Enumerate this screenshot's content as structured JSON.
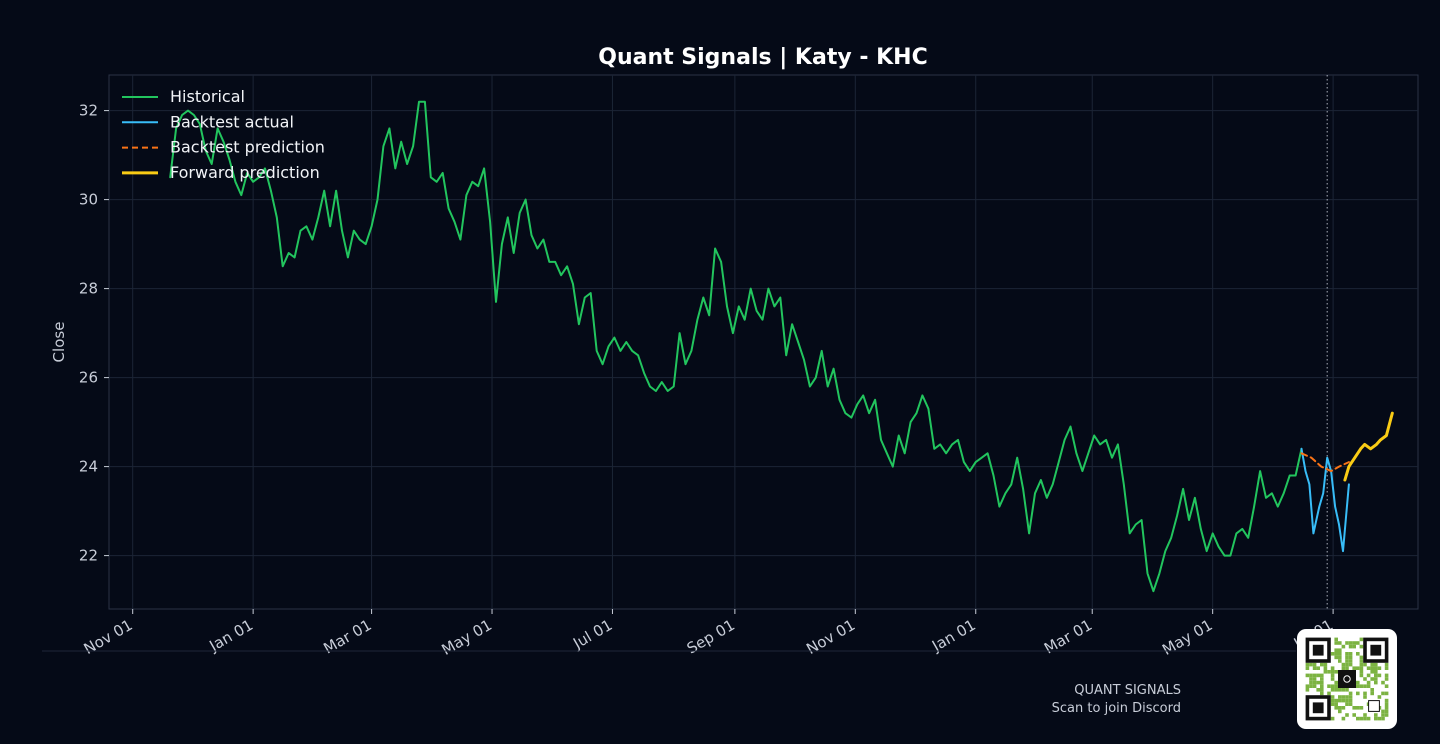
{
  "colors": {
    "background": "#050a17",
    "grid": "#1c2536",
    "spine": "#2a3346",
    "historical": "#22c55e",
    "backtest_actual": "#38bdf8",
    "backtest_prediction": "#f97316",
    "forward_prediction": "#facc15"
  },
  "footer": {
    "brand": "QUANT SIGNALS",
    "cta": "Scan to join Discord",
    "qr_icon": "qr-code-icon"
  },
  "chart_data": {
    "type": "line",
    "title": "Quant Signals | Katy - KHC",
    "xlabel": "",
    "ylabel": "Close",
    "x_axis": "date",
    "xlim": [
      "2023-10-20",
      "2025-08-13"
    ],
    "ylim": [
      20.8,
      32.8
    ],
    "yticks": [
      22,
      24,
      26,
      28,
      30,
      32
    ],
    "xticks": [
      "2023-11-01",
      "2024-01-01",
      "2024-03-01",
      "2024-05-01",
      "2024-07-01",
      "2024-09-01",
      "2024-11-01",
      "2025-01-01",
      "2025-03-01",
      "2025-05-01",
      "2025-07-01"
    ],
    "xtick_labels": [
      "Nov 01",
      "Jan 01",
      "Mar 01",
      "May 01",
      "Jul 01",
      "Sep 01",
      "Nov 01",
      "Jan 01",
      "Mar 01",
      "May 01",
      "Jul 01"
    ],
    "grid": true,
    "legend_position": "top-left",
    "forecast_start_marker": "2025-06-28",
    "series": [
      {
        "name": "Historical",
        "style": "solid",
        "points": [
          [
            "2023-11-20",
            30.5
          ],
          [
            "2023-11-23",
            31.6
          ],
          [
            "2023-11-26",
            31.9
          ],
          [
            "2023-11-29",
            32.0
          ],
          [
            "2023-12-02",
            31.9
          ],
          [
            "2023-12-05",
            31.7
          ],
          [
            "2023-12-08",
            31.1
          ],
          [
            "2023-12-11",
            30.8
          ],
          [
            "2023-12-14",
            31.6
          ],
          [
            "2023-12-17",
            31.3
          ],
          [
            "2023-12-20",
            30.9
          ],
          [
            "2023-12-23",
            30.4
          ],
          [
            "2023-12-26",
            30.1
          ],
          [
            "2023-12-29",
            30.6
          ],
          [
            "2024-01-01",
            30.4
          ],
          [
            "2024-01-04",
            30.5
          ],
          [
            "2024-01-07",
            30.7
          ],
          [
            "2024-01-10",
            30.2
          ],
          [
            "2024-01-13",
            29.6
          ],
          [
            "2024-01-16",
            28.5
          ],
          [
            "2024-01-19",
            28.8
          ],
          [
            "2024-01-22",
            28.7
          ],
          [
            "2024-01-25",
            29.3
          ],
          [
            "2024-01-28",
            29.4
          ],
          [
            "2024-01-31",
            29.1
          ],
          [
            "2024-02-03",
            29.6
          ],
          [
            "2024-02-06",
            30.2
          ],
          [
            "2024-02-09",
            29.4
          ],
          [
            "2024-02-12",
            30.2
          ],
          [
            "2024-02-15",
            29.3
          ],
          [
            "2024-02-18",
            28.7
          ],
          [
            "2024-02-21",
            29.3
          ],
          [
            "2024-02-24",
            29.1
          ],
          [
            "2024-02-27",
            29.0
          ],
          [
            "2024-03-01",
            29.4
          ],
          [
            "2024-03-04",
            30.0
          ],
          [
            "2024-03-07",
            31.2
          ],
          [
            "2024-03-10",
            31.6
          ],
          [
            "2024-03-13",
            30.7
          ],
          [
            "2024-03-16",
            31.3
          ],
          [
            "2024-03-19",
            30.8
          ],
          [
            "2024-03-22",
            31.2
          ],
          [
            "2024-03-25",
            32.2
          ],
          [
            "2024-03-28",
            32.2
          ],
          [
            "2024-03-31",
            30.5
          ],
          [
            "2024-04-03",
            30.4
          ],
          [
            "2024-04-06",
            30.6
          ],
          [
            "2024-04-09",
            29.8
          ],
          [
            "2024-04-12",
            29.5
          ],
          [
            "2024-04-15",
            29.1
          ],
          [
            "2024-04-18",
            30.1
          ],
          [
            "2024-04-21",
            30.4
          ],
          [
            "2024-04-24",
            30.3
          ],
          [
            "2024-04-27",
            30.7
          ],
          [
            "2024-04-30",
            29.5
          ],
          [
            "2024-05-03",
            27.7
          ],
          [
            "2024-05-06",
            29.0
          ],
          [
            "2024-05-09",
            29.6
          ],
          [
            "2024-05-12",
            28.8
          ],
          [
            "2024-05-15",
            29.7
          ],
          [
            "2024-05-18",
            30.0
          ],
          [
            "2024-05-21",
            29.2
          ],
          [
            "2024-05-24",
            28.9
          ],
          [
            "2024-05-27",
            29.1
          ],
          [
            "2024-05-30",
            28.6
          ],
          [
            "2024-06-02",
            28.6
          ],
          [
            "2024-06-05",
            28.3
          ],
          [
            "2024-06-08",
            28.5
          ],
          [
            "2024-06-11",
            28.1
          ],
          [
            "2024-06-14",
            27.2
          ],
          [
            "2024-06-17",
            27.8
          ],
          [
            "2024-06-20",
            27.9
          ],
          [
            "2024-06-23",
            26.6
          ],
          [
            "2024-06-26",
            26.3
          ],
          [
            "2024-06-29",
            26.7
          ],
          [
            "2024-07-02",
            26.9
          ],
          [
            "2024-07-05",
            26.6
          ],
          [
            "2024-07-08",
            26.8
          ],
          [
            "2024-07-11",
            26.6
          ],
          [
            "2024-07-14",
            26.5
          ],
          [
            "2024-07-17",
            26.1
          ],
          [
            "2024-07-20",
            25.8
          ],
          [
            "2024-07-23",
            25.7
          ],
          [
            "2024-07-26",
            25.9
          ],
          [
            "2024-07-29",
            25.7
          ],
          [
            "2024-08-01",
            25.8
          ],
          [
            "2024-08-04",
            27.0
          ],
          [
            "2024-08-07",
            26.3
          ],
          [
            "2024-08-10",
            26.6
          ],
          [
            "2024-08-13",
            27.3
          ],
          [
            "2024-08-16",
            27.8
          ],
          [
            "2024-08-19",
            27.4
          ],
          [
            "2024-08-22",
            28.9
          ],
          [
            "2024-08-25",
            28.6
          ],
          [
            "2024-08-28",
            27.6
          ],
          [
            "2024-08-31",
            27.0
          ],
          [
            "2024-09-03",
            27.6
          ],
          [
            "2024-09-06",
            27.3
          ],
          [
            "2024-09-09",
            28.0
          ],
          [
            "2024-09-12",
            27.5
          ],
          [
            "2024-09-15",
            27.3
          ],
          [
            "2024-09-18",
            28.0
          ],
          [
            "2024-09-21",
            27.6
          ],
          [
            "2024-09-24",
            27.8
          ],
          [
            "2024-09-27",
            26.5
          ],
          [
            "2024-09-30",
            27.2
          ],
          [
            "2024-10-03",
            26.8
          ],
          [
            "2024-10-06",
            26.4
          ],
          [
            "2024-10-09",
            25.8
          ],
          [
            "2024-10-12",
            26.0
          ],
          [
            "2024-10-15",
            26.6
          ],
          [
            "2024-10-18",
            25.8
          ],
          [
            "2024-10-21",
            26.2
          ],
          [
            "2024-10-24",
            25.5
          ],
          [
            "2024-10-27",
            25.2
          ],
          [
            "2024-10-30",
            25.1
          ],
          [
            "2024-11-02",
            25.4
          ],
          [
            "2024-11-05",
            25.6
          ],
          [
            "2024-11-08",
            25.2
          ],
          [
            "2024-11-11",
            25.5
          ],
          [
            "2024-11-14",
            24.6
          ],
          [
            "2024-11-17",
            24.3
          ],
          [
            "2024-11-20",
            24.0
          ],
          [
            "2024-11-23",
            24.7
          ],
          [
            "2024-11-26",
            24.3
          ],
          [
            "2024-11-29",
            25.0
          ],
          [
            "2024-12-02",
            25.2
          ],
          [
            "2024-12-05",
            25.6
          ],
          [
            "2024-12-08",
            25.3
          ],
          [
            "2024-12-11",
            24.4
          ],
          [
            "2024-12-14",
            24.5
          ],
          [
            "2024-12-17",
            24.3
          ],
          [
            "2024-12-20",
            24.5
          ],
          [
            "2024-12-23",
            24.6
          ],
          [
            "2024-12-26",
            24.1
          ],
          [
            "2024-12-29",
            23.9
          ],
          [
            "2025-01-01",
            24.1
          ],
          [
            "2025-01-04",
            24.2
          ],
          [
            "2025-01-07",
            24.3
          ],
          [
            "2025-01-10",
            23.8
          ],
          [
            "2025-01-13",
            23.1
          ],
          [
            "2025-01-16",
            23.4
          ],
          [
            "2025-01-19",
            23.6
          ],
          [
            "2025-01-22",
            24.2
          ],
          [
            "2025-01-25",
            23.5
          ],
          [
            "2025-01-28",
            22.5
          ],
          [
            "2025-01-31",
            23.4
          ],
          [
            "2025-02-03",
            23.7
          ],
          [
            "2025-02-06",
            23.3
          ],
          [
            "2025-02-09",
            23.6
          ],
          [
            "2025-02-12",
            24.1
          ],
          [
            "2025-02-15",
            24.6
          ],
          [
            "2025-02-18",
            24.9
          ],
          [
            "2025-02-21",
            24.3
          ],
          [
            "2025-02-24",
            23.9
          ],
          [
            "2025-02-27",
            24.3
          ],
          [
            "2025-03-02",
            24.7
          ],
          [
            "2025-03-05",
            24.5
          ],
          [
            "2025-03-08",
            24.6
          ],
          [
            "2025-03-11",
            24.2
          ],
          [
            "2025-03-14",
            24.5
          ],
          [
            "2025-03-17",
            23.6
          ],
          [
            "2025-03-20",
            22.5
          ],
          [
            "2025-03-23",
            22.7
          ],
          [
            "2025-03-26",
            22.8
          ],
          [
            "2025-03-29",
            21.6
          ],
          [
            "2025-04-01",
            21.2
          ],
          [
            "2025-04-04",
            21.6
          ],
          [
            "2025-04-07",
            22.1
          ],
          [
            "2025-04-10",
            22.4
          ],
          [
            "2025-04-13",
            22.9
          ],
          [
            "2025-04-16",
            23.5
          ],
          [
            "2025-04-19",
            22.8
          ],
          [
            "2025-04-22",
            23.3
          ],
          [
            "2025-04-25",
            22.6
          ],
          [
            "2025-04-28",
            22.1
          ],
          [
            "2025-05-01",
            22.5
          ],
          [
            "2025-05-04",
            22.2
          ],
          [
            "2025-05-07",
            22.0
          ],
          [
            "2025-05-10",
            22.0
          ],
          [
            "2025-05-13",
            22.5
          ],
          [
            "2025-05-16",
            22.6
          ],
          [
            "2025-05-19",
            22.4
          ],
          [
            "2025-05-22",
            23.1
          ],
          [
            "2025-05-25",
            23.9
          ],
          [
            "2025-05-28",
            23.3
          ],
          [
            "2025-05-31",
            23.4
          ],
          [
            "2025-06-03",
            23.1
          ],
          [
            "2025-06-06",
            23.4
          ],
          [
            "2025-06-09",
            23.8
          ],
          [
            "2025-06-12",
            23.8
          ],
          [
            "2025-06-15",
            24.4
          ]
        ]
      },
      {
        "name": "Backtest actual",
        "style": "solid",
        "points": [
          [
            "2025-06-15",
            24.4
          ],
          [
            "2025-06-17",
            23.9
          ],
          [
            "2025-06-19",
            23.6
          ],
          [
            "2025-06-21",
            22.5
          ],
          [
            "2025-06-24",
            23.1
          ],
          [
            "2025-06-26",
            23.4
          ],
          [
            "2025-06-28",
            24.2
          ],
          [
            "2025-06-30",
            23.9
          ],
          [
            "2025-07-02",
            23.1
          ],
          [
            "2025-07-04",
            22.7
          ],
          [
            "2025-07-06",
            22.1
          ],
          [
            "2025-07-09",
            23.6
          ]
        ]
      },
      {
        "name": "Backtest prediction",
        "style": "dashed",
        "points": [
          [
            "2025-06-15",
            24.3
          ],
          [
            "2025-06-20",
            24.2
          ],
          [
            "2025-06-25",
            24.0
          ],
          [
            "2025-06-30",
            23.9
          ],
          [
            "2025-07-04",
            24.0
          ],
          [
            "2025-07-09",
            24.1
          ]
        ]
      },
      {
        "name": "Forward prediction",
        "style": "solid",
        "points": [
          [
            "2025-07-07",
            23.7
          ],
          [
            "2025-07-09",
            24.0
          ],
          [
            "2025-07-12",
            24.2
          ],
          [
            "2025-07-15",
            24.4
          ],
          [
            "2025-07-17",
            24.5
          ],
          [
            "2025-07-20",
            24.4
          ],
          [
            "2025-07-23",
            24.5
          ],
          [
            "2025-07-25",
            24.6
          ],
          [
            "2025-07-28",
            24.7
          ],
          [
            "2025-07-31",
            25.2
          ]
        ]
      }
    ]
  }
}
